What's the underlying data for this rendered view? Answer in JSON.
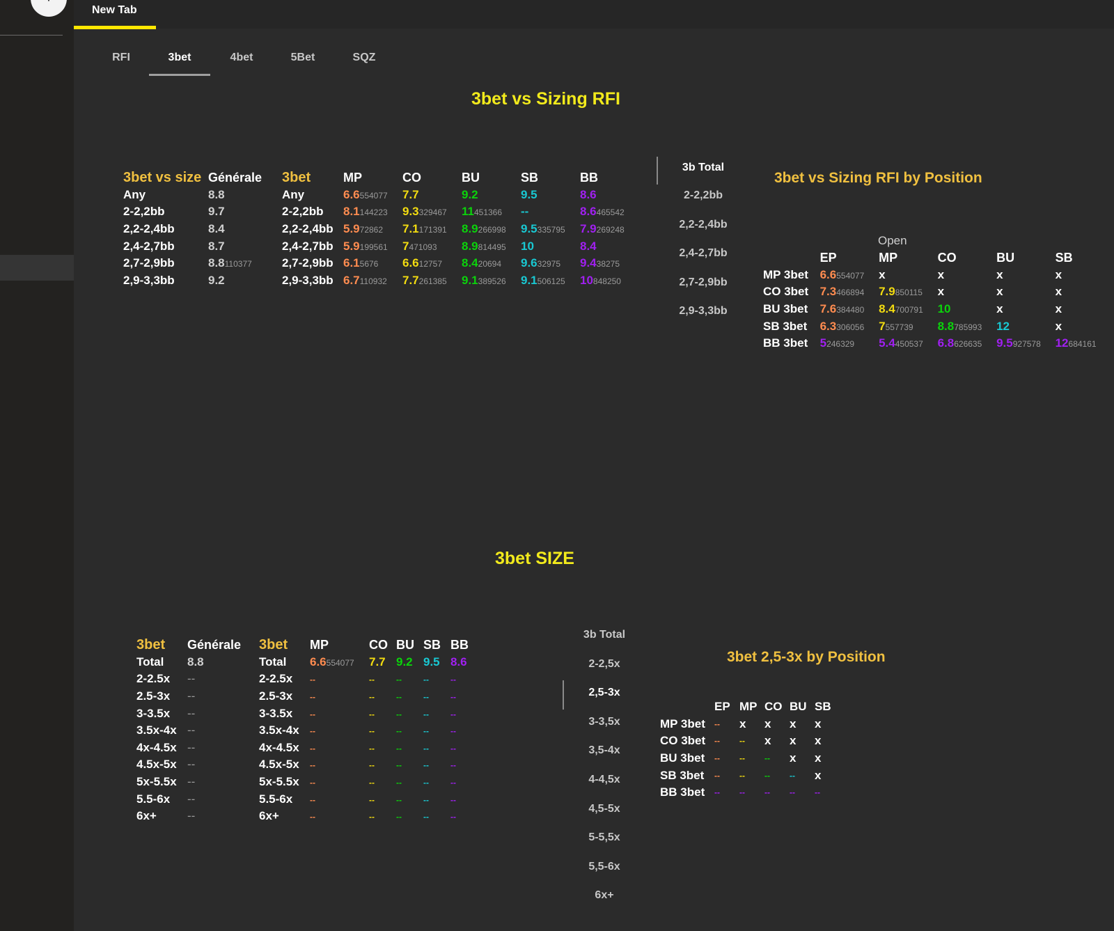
{
  "browser": {
    "new_tab_button": "+",
    "tab_label": "New Tab"
  },
  "subtabs": [
    "RFI",
    "3bet",
    "4bet",
    "5Bet",
    "SQZ"
  ],
  "colors": {
    "background": "#2b2b2b",
    "accent_yellow": "#ffe700",
    "header_orange": "#f0c040",
    "EP": "#ff8c50",
    "MP": "#f3dc10",
    "CO": "#0bd20b",
    "BU": "#19c8d2",
    "SB": "#a020f0"
  },
  "section1": {
    "title": "3bet vs Sizing RFI",
    "general": {
      "headers": [
        "3bet vs size",
        "Générale"
      ],
      "rows": [
        [
          "Any",
          "8.8",
          ""
        ],
        [
          "2-2,2bb",
          "9.7",
          ""
        ],
        [
          "2,2-2,4bb",
          "8.4",
          ""
        ],
        [
          "2,4-2,7bb",
          "8.7",
          ""
        ],
        [
          "2,7-2,9bb",
          "8.8",
          "110377"
        ],
        [
          "2,9-3,3bb",
          "9.2",
          ""
        ]
      ]
    },
    "by_open": {
      "headers": [
        "3bet",
        "MP",
        "CO",
        "BU",
        "SB",
        "BB"
      ],
      "rows": [
        {
          "label": "Any",
          "cells": [
            [
              "6.6",
              "554077"
            ],
            [
              "7.7",
              ""
            ],
            [
              "9.2",
              ""
            ],
            [
              "9.5",
              ""
            ],
            [
              "8.6",
              ""
            ]
          ]
        },
        {
          "label": "2-2,2bb",
          "cells": [
            [
              "8.1",
              "144223"
            ],
            [
              "9.3",
              "329467"
            ],
            [
              "11",
              "451366"
            ],
            [
              "--",
              ""
            ],
            [
              "8.6",
              "465542"
            ]
          ]
        },
        {
          "label": "2,2-2,4bb",
          "cells": [
            [
              "5.9",
              "72862"
            ],
            [
              "7.1",
              "171391"
            ],
            [
              "8.9",
              "266998"
            ],
            [
              "9.5",
              "335795"
            ],
            [
              "7.9",
              "269248"
            ]
          ]
        },
        {
          "label": "2,4-2,7bb",
          "cells": [
            [
              "5.9",
              "199561"
            ],
            [
              "7",
              "471093"
            ],
            [
              "8.9",
              "814495"
            ],
            [
              "10",
              ""
            ],
            [
              "8.4",
              ""
            ]
          ]
        },
        {
          "label": "2,7-2,9bb",
          "cells": [
            [
              "6.1",
              "5676"
            ],
            [
              "6.6",
              "12757"
            ],
            [
              "8.4",
              "20694"
            ],
            [
              "9.6",
              "32975"
            ],
            [
              "9.4",
              "38275"
            ]
          ]
        },
        {
          "label": "2,9-3,3bb",
          "cells": [
            [
              "6.7",
              "110932"
            ],
            [
              "7.7",
              "261385"
            ],
            [
              "9.1",
              "389526"
            ],
            [
              "9.1",
              "506125"
            ],
            [
              "10",
              "848250"
            ]
          ]
        }
      ]
    },
    "vertical_tabs": [
      "3b Total",
      "2-2,2bb",
      "2,2-2,4bb",
      "2,4-2,7bb",
      "2,7-2,9bb",
      "2,9-3,3bb"
    ],
    "by_position": {
      "title": "3bet vs Sizing RFI by Position",
      "open_label": "Open",
      "headers": [
        "EP",
        "MP",
        "CO",
        "BU",
        "SB"
      ],
      "rows": [
        {
          "label": "MP 3bet",
          "cells": [
            [
              "6.6",
              "554077"
            ],
            [
              "x",
              ""
            ],
            [
              "x",
              ""
            ],
            [
              "x",
              ""
            ],
            [
              "x",
              ""
            ]
          ]
        },
        {
          "label": "CO 3bet",
          "cells": [
            [
              "7.3",
              "466894"
            ],
            [
              "7.9",
              "850115"
            ],
            [
              "x",
              ""
            ],
            [
              "x",
              ""
            ],
            [
              "x",
              ""
            ]
          ]
        },
        {
          "label": "BU 3bet",
          "cells": [
            [
              "7.6",
              "384480"
            ],
            [
              "8.4",
              "700791"
            ],
            [
              "10",
              ""
            ],
            [
              "x",
              ""
            ],
            [
              "x",
              ""
            ]
          ]
        },
        {
          "label": "SB 3bet",
          "cells": [
            [
              "6.3",
              "306056"
            ],
            [
              "7",
              "557739"
            ],
            [
              "8.8",
              "785993"
            ],
            [
              "12",
              ""
            ],
            [
              "x",
              ""
            ]
          ]
        },
        {
          "label": "BB 3bet",
          "cells": [
            [
              "5",
              "246329"
            ],
            [
              "5.4",
              "450537"
            ],
            [
              "6.8",
              "626635"
            ],
            [
              "9.5",
              "927578"
            ],
            [
              "12",
              "684161"
            ]
          ]
        }
      ]
    }
  },
  "section2": {
    "title": "3bet SIZE",
    "general": {
      "headers": [
        "3bet",
        "Générale"
      ],
      "rows": [
        [
          "Total",
          "8.8"
        ],
        [
          "2-2.5x",
          "--"
        ],
        [
          "2.5-3x",
          "--"
        ],
        [
          "3-3.5x",
          "--"
        ],
        [
          "3.5x-4x",
          "--"
        ],
        [
          "4x-4.5x",
          "--"
        ],
        [
          "4.5x-5x",
          "--"
        ],
        [
          "5x-5.5x",
          "--"
        ],
        [
          "5.5-6x",
          "--"
        ],
        [
          "6x+",
          "--"
        ]
      ]
    },
    "by_open": {
      "headers": [
        "3bet",
        "MP",
        "CO",
        "BU",
        "SB",
        "BB"
      ],
      "rows": [
        {
          "label": "Total",
          "cells": [
            [
              "6.6",
              "554077"
            ],
            [
              "7.7",
              ""
            ],
            [
              "9.2",
              ""
            ],
            [
              "9.5",
              ""
            ],
            [
              "8.6",
              ""
            ]
          ]
        },
        {
          "label": "2-2.5x",
          "cells": [
            [
              "--",
              ""
            ],
            [
              "--",
              ""
            ],
            [
              "--",
              ""
            ],
            [
              "--",
              ""
            ],
            [
              "--",
              ""
            ]
          ]
        },
        {
          "label": "2.5-3x",
          "cells": [
            [
              "--",
              ""
            ],
            [
              "--",
              ""
            ],
            [
              "--",
              ""
            ],
            [
              "--",
              ""
            ],
            [
              "--",
              ""
            ]
          ]
        },
        {
          "label": "3-3.5x",
          "cells": [
            [
              "--",
              ""
            ],
            [
              "--",
              ""
            ],
            [
              "--",
              ""
            ],
            [
              "--",
              ""
            ],
            [
              "--",
              ""
            ]
          ]
        },
        {
          "label": "3.5x-4x",
          "cells": [
            [
              "--",
              ""
            ],
            [
              "--",
              ""
            ],
            [
              "--",
              ""
            ],
            [
              "--",
              ""
            ],
            [
              "--",
              ""
            ]
          ]
        },
        {
          "label": "4x-4.5x",
          "cells": [
            [
              "--",
              ""
            ],
            [
              "--",
              ""
            ],
            [
              "--",
              ""
            ],
            [
              "--",
              ""
            ],
            [
              "--",
              ""
            ]
          ]
        },
        {
          "label": "4.5x-5x",
          "cells": [
            [
              "--",
              ""
            ],
            [
              "--",
              ""
            ],
            [
              "--",
              ""
            ],
            [
              "--",
              ""
            ],
            [
              "--",
              ""
            ]
          ]
        },
        {
          "label": "5x-5.5x",
          "cells": [
            [
              "--",
              ""
            ],
            [
              "--",
              ""
            ],
            [
              "--",
              ""
            ],
            [
              "--",
              ""
            ],
            [
              "--",
              ""
            ]
          ]
        },
        {
          "label": "5.5-6x",
          "cells": [
            [
              "--",
              ""
            ],
            [
              "--",
              ""
            ],
            [
              "--",
              ""
            ],
            [
              "--",
              ""
            ],
            [
              "--",
              ""
            ]
          ]
        },
        {
          "label": "6x+",
          "cells": [
            [
              "--",
              ""
            ],
            [
              "--",
              ""
            ],
            [
              "--",
              ""
            ],
            [
              "--",
              ""
            ],
            [
              "--",
              ""
            ]
          ]
        }
      ]
    },
    "vertical_tabs": [
      "3b Total",
      "2-2,5x",
      "2,5-3x",
      "3-3,5x",
      "3,5-4x",
      "4-4,5x",
      "4,5-5x",
      "5-5,5x",
      "5,5-6x",
      "6x+"
    ],
    "by_position": {
      "title": "3bet 2,5-3x by Position",
      "headers": [
        "EP",
        "MP",
        "CO",
        "BU",
        "SB"
      ],
      "rows": [
        {
          "label": "MP 3bet",
          "cells": [
            "--",
            "x",
            "x",
            "x",
            "x"
          ]
        },
        {
          "label": "CO 3bet",
          "cells": [
            "--",
            "--",
            "x",
            "x",
            "x"
          ]
        },
        {
          "label": "BU 3bet",
          "cells": [
            "--",
            "--",
            "--",
            "x",
            "x"
          ]
        },
        {
          "label": "SB 3bet",
          "cells": [
            "--",
            "--",
            "--",
            "--",
            "x"
          ]
        },
        {
          "label": "BB 3bet",
          "cells": [
            "--",
            "--",
            "--",
            "--",
            "--"
          ]
        }
      ]
    }
  }
}
